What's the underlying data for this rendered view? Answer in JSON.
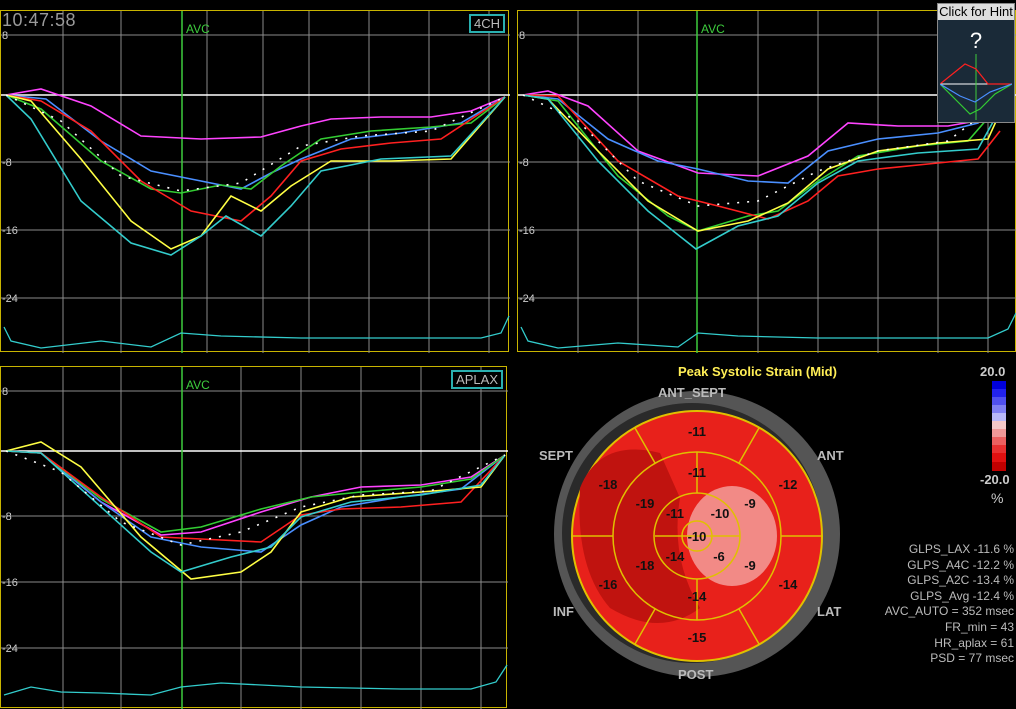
{
  "time": "10:47:58",
  "help": {
    "label": "Click for Hint",
    "symbol": "?"
  },
  "panels": [
    {
      "id": "4ch",
      "view_label": "4CH",
      "avc_label": "AVC",
      "y_ticks": [
        "8",
        "0",
        "-8",
        "-16",
        "-24"
      ]
    },
    {
      "id": "2ch",
      "view_label": "",
      "avc_label": "AVC",
      "y_ticks": [
        "8",
        "0",
        "-8",
        "-16",
        "-24"
      ]
    },
    {
      "id": "aplax",
      "view_label": "APLAX",
      "avc_label": "AVC",
      "y_ticks": [
        "8",
        "0",
        "-8",
        "-16",
        "-24"
      ]
    }
  ],
  "colors": {
    "panel_border": "#c8b400",
    "grid": "#8a8a8a",
    "avc": "#3dcc3d",
    "baseline": "#ffffff",
    "curves": [
      "#ff44ff",
      "#4a8fff",
      "#33cc33",
      "#ff2020",
      "#ffff44",
      "#33cccc"
    ],
    "bullseye_segment": "#e8211b",
    "bullseye_dark": "#c0130f",
    "bullseye_light": "#f28a86"
  },
  "bullseye": {
    "title": "Peak Systolic Strain (Mid)",
    "orientation_labels": {
      "ant_sept": "ANT_SEPT",
      "ant": "ANT",
      "lat": "LAT",
      "post": "POST",
      "inf": "INF",
      "sept": "SEPT"
    },
    "outer_ring": [
      "-11",
      "-12",
      "-14",
      "-15",
      "-16",
      "-18"
    ],
    "mid_ring": [
      "-11",
      "-9",
      "-9",
      "-14",
      "-18",
      "-19"
    ],
    "apical_ring": [
      "-10",
      "-6",
      "-14",
      "-11"
    ],
    "apex": "-10",
    "colorbar": {
      "max": "20.0",
      "min": "-20.0",
      "unit": "%"
    }
  },
  "stats": [
    "GLPS_LAX  -11.6 %",
    "GLPS_A4C  -12.2 %",
    "GLPS_A2C  -13.4 %",
    "GLPS_Avg  -12.4 %",
    "AVC_AUTO = 352 msec",
    "FR_min = 43",
    "HR_aplax = 61",
    "PSD = 77 msec"
  ]
}
